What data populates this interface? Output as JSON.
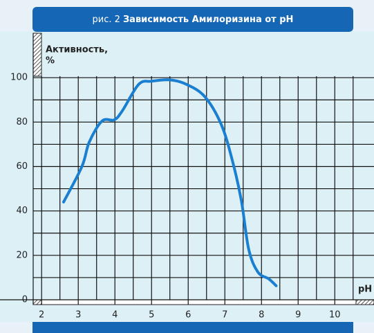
{
  "chart_data": {
    "type": "line",
    "figure_label": "рис. 2",
    "title": "Зависимость Амилоризина от pH",
    "y_label": [
      "Активность,",
      "%"
    ],
    "x_label": "pH",
    "x": [
      2.6,
      3.1,
      3.3,
      3.65,
      3.98,
      4.2,
      4.65,
      5.0,
      5.5,
      5.95,
      6.45,
      6.9,
      7.2,
      7.45,
      7.65,
      7.9,
      8.2,
      8.4
    ],
    "series": [
      {
        "color": "#1a7fd0",
        "values": [
          44,
          60,
          71,
          80.5,
          81,
          85,
          97,
          98.4,
          99,
          97,
          91.5,
          79,
          63,
          44.7,
          22.8,
          12.5,
          9.4,
          6.3
        ]
      }
    ],
    "xlim": [
      1.77,
      11.07
    ],
    "xticks": [
      2,
      3,
      4,
      5,
      6,
      7,
      8,
      9,
      10
    ],
    "ylim": [
      0,
      120
    ],
    "yticks": [
      0,
      20,
      40,
      60,
      80,
      100
    ],
    "grid": true
  }
}
